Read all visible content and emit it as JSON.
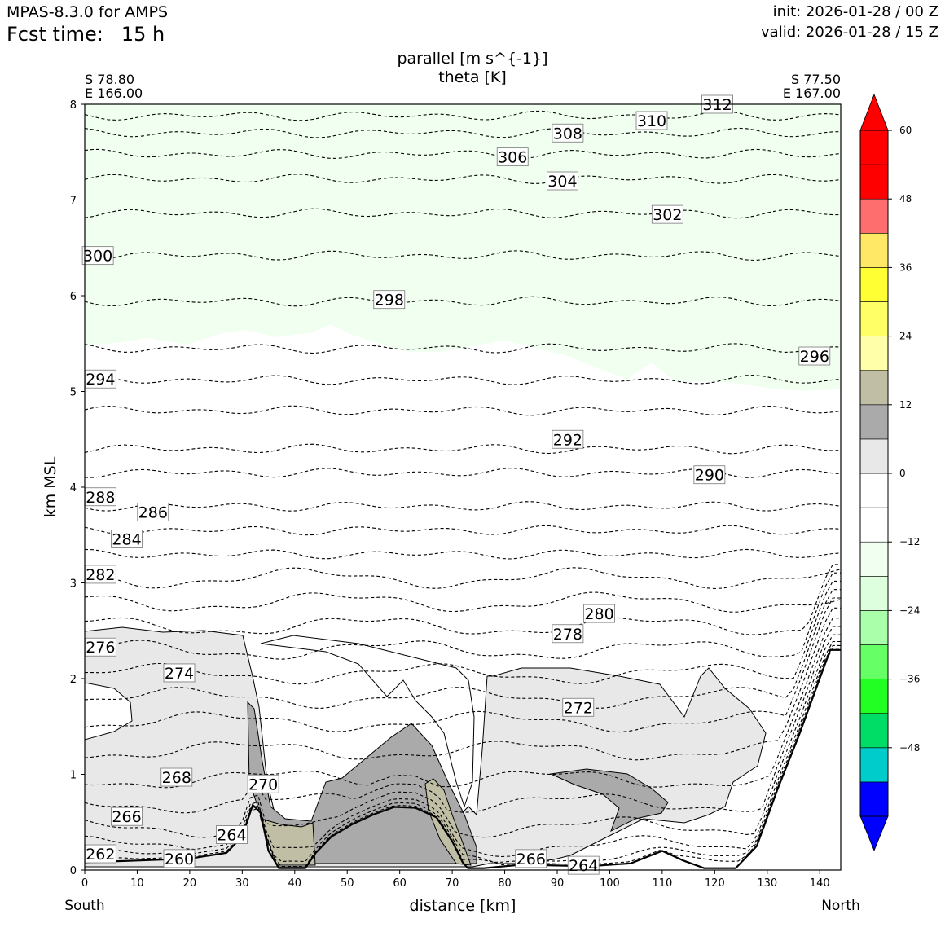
{
  "header": {
    "model": "MPAS-8.3.0 for AMPS",
    "fcst_label": "Fcst time:",
    "fcst_value": "15 h",
    "init": "init: 2026-01-28 / 00 Z",
    "valid": "valid: 2026-01-28 / 15 Z"
  },
  "chart_data": {
    "type": "cross-section",
    "title_line1": "parallel [m s^{-1}]",
    "title_line2": "theta [K]",
    "left_endpoint": [
      "S 78.80",
      "E 166.00"
    ],
    "right_endpoint": [
      "S 77.50",
      "E 167.00"
    ],
    "xlabel": "distance [km]",
    "ylabel": "km MSL",
    "x_left_label": "South",
    "x_right_label": "North",
    "xlim": [
      0,
      144
    ],
    "ylim": [
      0,
      8
    ],
    "x_ticks": [
      0,
      10,
      20,
      30,
      40,
      50,
      60,
      70,
      80,
      90,
      100,
      110,
      120,
      130,
      140
    ],
    "y_ticks": [
      0,
      1,
      2,
      3,
      4,
      5,
      6,
      7,
      8
    ],
    "colorbar": {
      "levels": [
        -60,
        -54,
        -48,
        -42,
        -36,
        -30,
        -24,
        -18,
        -12,
        -6,
        0,
        6,
        12,
        18,
        24,
        30,
        36,
        42,
        48,
        54,
        60
      ],
      "tick_labels": [
        "60",
        "48",
        "36",
        "24",
        "12",
        "0",
        "−12",
        "−24",
        "−36",
        "−48"
      ],
      "tick_values": [
        60,
        48,
        36,
        24,
        12,
        0,
        -12,
        -24,
        -36,
        -48
      ],
      "colors_bottom_to_top": [
        "#0000ff",
        "#00cccc",
        "#00dd66",
        "#22ff22",
        "#66ff66",
        "#aaffaa",
        "#ddffdd",
        "#f1fff1",
        "#ffffff",
        "#ffffff",
        "#e8e8e8",
        "#aaaaaa",
        "#c0bfa6",
        "#ffffaa",
        "#ffff66",
        "#ffff33",
        "#ffe866",
        "#ff6e6e",
        "#ff0000",
        "#ff0000"
      ],
      "extend": "both"
    },
    "terrain": [
      [
        0,
        0.08
      ],
      [
        10,
        0.1
      ],
      [
        20,
        0.12
      ],
      [
        27,
        0.18
      ],
      [
        30,
        0.35
      ],
      [
        32,
        0.68
      ],
      [
        33.5,
        0.6
      ],
      [
        35,
        0.2
      ],
      [
        37,
        0.02
      ],
      [
        42,
        0.02
      ],
      [
        44,
        0.18
      ],
      [
        47,
        0.35
      ],
      [
        51,
        0.48
      ],
      [
        55,
        0.58
      ],
      [
        59,
        0.66
      ],
      [
        63,
        0.65
      ],
      [
        67,
        0.55
      ],
      [
        70,
        0.3
      ],
      [
        72,
        0.08
      ],
      [
        73,
        0.02
      ],
      [
        76,
        0.02
      ],
      [
        82,
        0.05
      ],
      [
        88,
        0.05
      ],
      [
        96,
        0.04
      ],
      [
        104,
        0.07
      ],
      [
        110,
        0.2
      ],
      [
        114,
        0.1
      ],
      [
        118,
        0.02
      ],
      [
        124,
        0.02
      ],
      [
        128,
        0.25
      ],
      [
        132,
        0.85
      ],
      [
        136,
        1.4
      ],
      [
        140,
        2.0
      ],
      [
        142,
        2.3
      ],
      [
        144,
        2.3
      ]
    ],
    "theta_contour_labels": [
      {
        "value": "312",
        "x": 120.5,
        "y": 8.0
      },
      {
        "value": "310",
        "x": 108,
        "y": 7.83
      },
      {
        "value": "308",
        "x": 92,
        "y": 7.7
      },
      {
        "value": "306",
        "x": 81.5,
        "y": 7.45
      },
      {
        "value": "304",
        "x": 91,
        "y": 7.2
      },
      {
        "value": "302",
        "x": 111,
        "y": 6.85
      },
      {
        "value": "300",
        "x": 2.5,
        "y": 6.42
      },
      {
        "value": "298",
        "x": 58,
        "y": 5.96
      },
      {
        "value": "296",
        "x": 139,
        "y": 5.37
      },
      {
        "value": "294",
        "x": 3,
        "y": 5.13
      },
      {
        "value": "292",
        "x": 92,
        "y": 4.5
      },
      {
        "value": "290",
        "x": 119,
        "y": 4.13
      },
      {
        "value": "288",
        "x": 3,
        "y": 3.9
      },
      {
        "value": "286",
        "x": 13,
        "y": 3.74
      },
      {
        "value": "284",
        "x": 8,
        "y": 3.46
      },
      {
        "value": "282",
        "x": 3,
        "y": 3.09
      },
      {
        "value": "280",
        "x": 98,
        "y": 2.68
      },
      {
        "value": "278",
        "x": 92,
        "y": 2.47
      },
      {
        "value": "276",
        "x": 3,
        "y": 2.33
      },
      {
        "value": "274",
        "x": 18,
        "y": 2.06
      },
      {
        "value": "272",
        "x": 94,
        "y": 1.7
      },
      {
        "value": "270",
        "x": 34,
        "y": 0.9
      },
      {
        "value": "268",
        "x": 17.5,
        "y": 0.97
      },
      {
        "value": "266",
        "x": 8,
        "y": 0.56
      },
      {
        "value": "264",
        "x": 28,
        "y": 0.37
      },
      {
        "value": "262",
        "x": 3,
        "y": 0.17
      },
      {
        "value": "260",
        "x": 18,
        "y": 0.12
      },
      {
        "value": "266",
        "x": 85,
        "y": 0.12
      },
      {
        "value": "264",
        "x": 95,
        "y": 0.05
      }
    ]
  }
}
